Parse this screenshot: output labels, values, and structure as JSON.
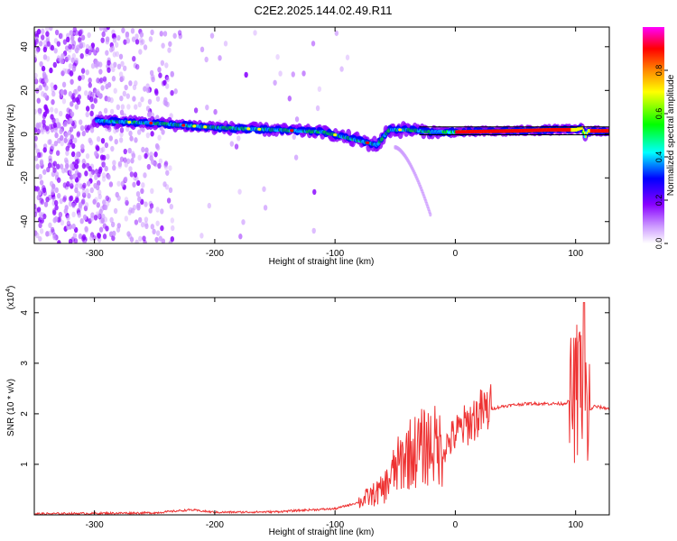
{
  "title": "C2E2.2025.144.02.49.R11",
  "chart_data": [
    {
      "type": "heatmap",
      "xlabel": "Height of straight line (km)",
      "ylabel": "Frequency (Hz)",
      "xlim": [
        -350,
        128
      ],
      "ylim": [
        -50,
        49
      ],
      "xticks": [
        -300,
        -200,
        -100,
        0,
        100
      ],
      "yticks": [
        -40,
        -20,
        0,
        20,
        40
      ],
      "colorbar": {
        "label": "Normalized spectral amplitude",
        "range": [
          0,
          1
        ],
        "ticks": [
          "0.0",
          "0.2",
          "0.4",
          "0.6",
          "0.8"
        ],
        "colors": [
          "#ffffff",
          "#cc99ff",
          "#8800ff",
          "#0000ff",
          "#00ffff",
          "#00ff00",
          "#ffff00",
          "#ff8800",
          "#ff0000",
          "#ff00ff"
        ]
      },
      "ridge": {
        "x": [
          -295,
          -250,
          -200,
          -150,
          -110,
          -80,
          -65,
          -55,
          -40,
          -20,
          0,
          50,
          80,
          100,
          105,
          108,
          110,
          128
        ],
        "y": [
          6,
          5,
          3,
          2,
          1,
          -3,
          -5,
          2,
          2,
          1,
          1,
          1.5,
          2,
          2,
          3,
          -1,
          1.5,
          1.5
        ]
      }
    },
    {
      "type": "line",
      "xlabel": "Height of straight line (km)",
      "ylabel": "SNR (10 * v/v)",
      "yscale_label": "(x10",
      "yscale_exponent": "4",
      "xlim": [
        -350,
        128
      ],
      "ylim": [
        0,
        4.3
      ],
      "xticks": [
        -300,
        -200,
        -100,
        0,
        100
      ],
      "yticks": [
        1,
        2,
        3,
        4
      ],
      "series": [
        {
          "color": "#ee3333",
          "x": [
            -350,
            -300,
            -250,
            -220,
            -200,
            -150,
            -120,
            -100,
            -80,
            -60,
            -50,
            -40,
            -30,
            -20,
            -10,
            0,
            10,
            20,
            30,
            40,
            50,
            60,
            70,
            80,
            90,
            95,
            100,
            105,
            110,
            115,
            128
          ],
          "y": [
            0.02,
            0.03,
            0.04,
            0.1,
            0.05,
            0.06,
            0.1,
            0.12,
            0.25,
            0.5,
            0.9,
            1.2,
            1.3,
            1.4,
            1.3,
            1.6,
            1.8,
            2.0,
            2.1,
            2.15,
            2.18,
            2.2,
            2.2,
            2.2,
            2.2,
            2.25,
            2.3,
            2.5,
            2.0,
            2.15,
            2.1
          ]
        }
      ]
    }
  ]
}
